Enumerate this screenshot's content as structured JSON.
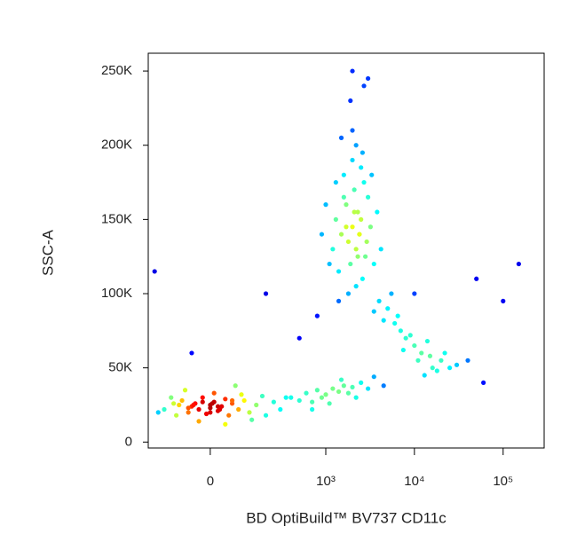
{
  "chart_data": {
    "type": "scatter",
    "xlabel": "BD OptiBuild™ BV737 CD11c",
    "ylabel": "SSC-A",
    "xscale": "biexponential",
    "colormap": "jet",
    "xlim": [
      -240,
      290000
    ],
    "ylim": [
      -4000,
      262000
    ],
    "xticks": [
      0,
      {
        "value": 1000,
        "label": "10³"
      },
      {
        "value": 10000,
        "label": "10⁴"
      },
      {
        "value": 100000,
        "label": "10⁵"
      }
    ],
    "yticks": [
      0,
      {
        "value": 50000,
        "label": "50K"
      },
      {
        "value": 100000,
        "label": "100K"
      },
      {
        "value": 150000,
        "label": "150K"
      },
      {
        "value": 200000,
        "label": "200K"
      },
      {
        "value": 250000,
        "label": "250K"
      }
    ],
    "x": [
      -150,
      -120,
      -100,
      -90,
      -80,
      -60,
      -50,
      -40,
      -30,
      -20,
      -10,
      0,
      0,
      10,
      20,
      30,
      40,
      50,
      60,
      80,
      100,
      120,
      150,
      180,
      200,
      250,
      300,
      -70,
      -30,
      10,
      40,
      70,
      -110,
      -20,
      20,
      90,
      130,
      -60,
      0,
      60,
      -180,
      350,
      5,
      25,
      -45,
      400,
      500,
      600,
      700,
      800,
      900,
      1000,
      1200,
      1400,
      1600,
      1800,
      2000,
      2500,
      3000,
      700,
      1100,
      1500,
      2200,
      3500,
      4500,
      1500,
      1800,
      2000,
      2200,
      2500,
      1700,
      1900,
      2100,
      2400,
      2800,
      1300,
      1600,
      2000,
      2300,
      2600,
      3000,
      1200,
      1400,
      2200,
      2700,
      3200,
      1000,
      1800,
      2500,
      3500,
      1500,
      2000,
      2900,
      1100,
      1700,
      2300,
      3800,
      900,
      2600,
      1900,
      1400,
      3300,
      2100,
      2400,
      1600,
      4200,
      2000,
      2700,
      1300,
      2200,
      4000,
      5000,
      6000,
      7000,
      8000,
      10000,
      12000,
      15000,
      20000,
      25000,
      30000,
      5500,
      6500,
      9000,
      11000,
      14000,
      18000,
      4500,
      7500,
      13000,
      22000,
      40000,
      60000,
      3500,
      16000,
      -200,
      -50,
      500,
      800,
      10000,
      50000,
      100000,
      150000,
      3000,
      200
    ],
    "y": [
      22000,
      30000,
      18000,
      25000,
      28000,
      20000,
      24000,
      26000,
      22000,
      30000,
      19000,
      25000,
      23000,
      27000,
      21000,
      24000,
      29000,
      18000,
      26000,
      22000,
      28000,
      20000,
      25000,
      31000,
      18000,
      27000,
      22000,
      35000,
      14000,
      33000,
      12000,
      38000,
      26000,
      27000,
      24000,
      32000,
      15000,
      23000,
      20000,
      28000,
      20000,
      30000,
      26000,
      22000,
      25000,
      30000,
      28000,
      33000,
      27000,
      35000,
      30000,
      32000,
      36000,
      34000,
      38000,
      33000,
      37000,
      40000,
      36000,
      22000,
      26000,
      42000,
      30000,
      44000,
      38000,
      140000,
      135000,
      145000,
      130000,
      150000,
      160000,
      120000,
      170000,
      140000,
      125000,
      150000,
      180000,
      190000,
      155000,
      110000,
      165000,
      130000,
      115000,
      200000,
      175000,
      145000,
      160000,
      100000,
      185000,
      120000,
      205000,
      210000,
      135000,
      120000,
      145000,
      125000,
      155000,
      140000,
      195000,
      230000,
      95000,
      180000,
      155000,
      140000,
      165000,
      130000,
      250000,
      240000,
      175000,
      105000,
      95000,
      90000,
      80000,
      75000,
      70000,
      65000,
      60000,
      58000,
      55000,
      50000,
      52000,
      100000,
      85000,
      72000,
      55000,
      68000,
      48000,
      82000,
      62000,
      45000,
      60000,
      55000,
      40000,
      88000,
      50000,
      115000,
      60000,
      70000,
      85000,
      100000,
      110000,
      95000,
      120000,
      245000,
      100000
    ]
  }
}
